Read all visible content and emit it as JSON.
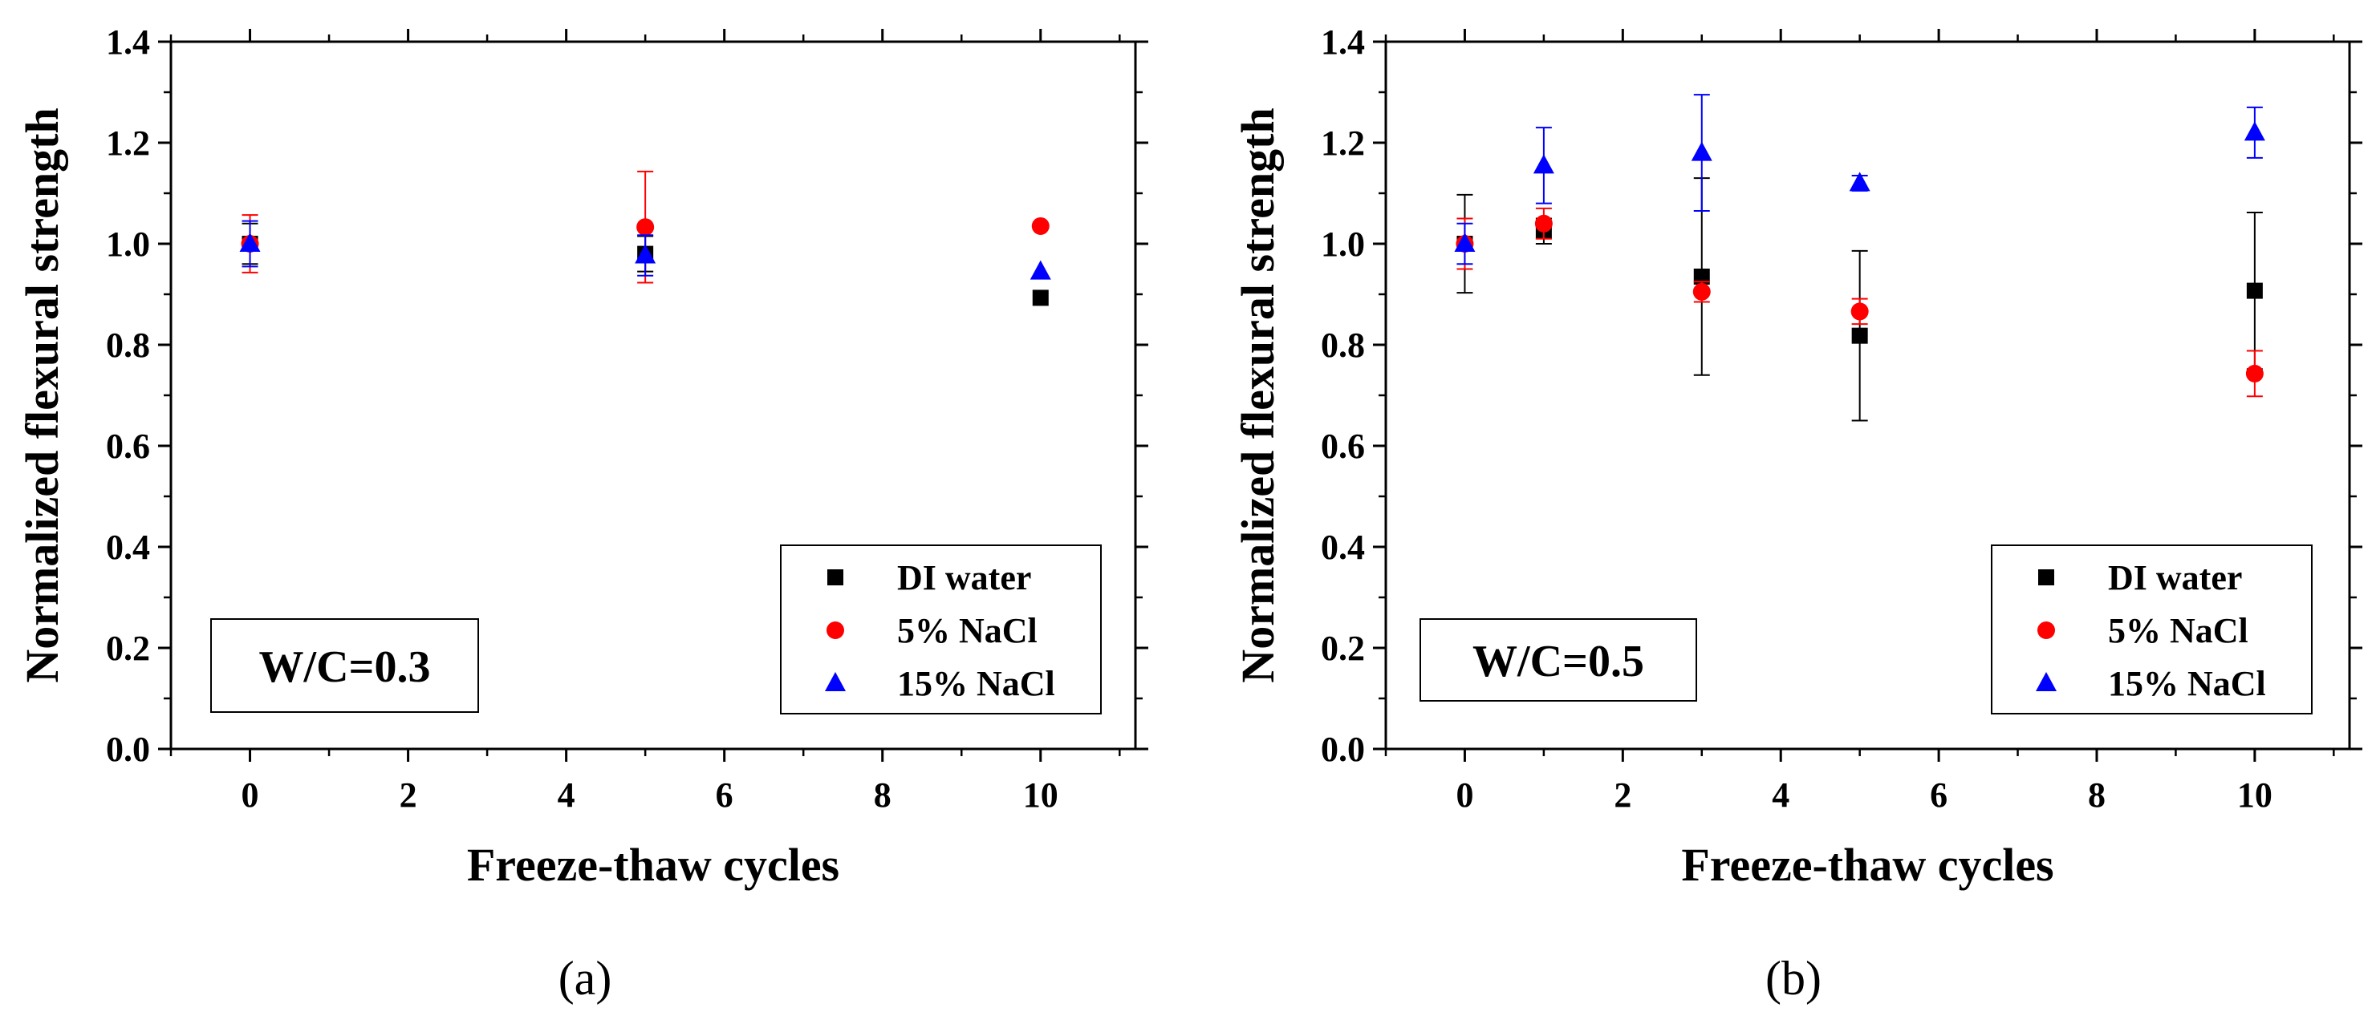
{
  "figure": {
    "panels": [
      "a",
      "b"
    ]
  },
  "chart_data": [
    {
      "type": "scatter",
      "panel_label": "(a)",
      "annotation": "W/C=0.3",
      "xlabel": "Freeze-thaw cycles",
      "ylabel": "Normalized flexural strength",
      "xlim": [
        -1,
        11.2
      ],
      "ylim": [
        0.0,
        1.4
      ],
      "xticks": [
        0,
        2,
        4,
        6,
        8,
        10
      ],
      "yticks": [
        0.0,
        0.2,
        0.4,
        0.6,
        0.8,
        1.0,
        1.2,
        1.4
      ],
      "legend_position": "bottom-right",
      "series": [
        {
          "name": "DI water",
          "marker": "square",
          "color": "#000000",
          "x": [
            0,
            5,
            10
          ],
          "y": [
            1.0,
            0.98,
            0.893
          ],
          "err": [
            0.04,
            0.035,
            0.0
          ]
        },
        {
          "name": "5% NaCl",
          "marker": "circle",
          "color": "#ff0000",
          "x": [
            0,
            5,
            10
          ],
          "y": [
            1.0,
            1.033,
            1.035
          ],
          "err": [
            0.057,
            0.11,
            0.0
          ]
        },
        {
          "name": "15% NaCl",
          "marker": "triangle",
          "color": "#0000ff",
          "x": [
            0,
            5,
            10
          ],
          "y": [
            1.0,
            0.977,
            0.945
          ],
          "err": [
            0.045,
            0.04,
            0.0
          ]
        }
      ]
    },
    {
      "type": "scatter",
      "panel_label": "(b)",
      "annotation": "W/C=0.5",
      "xlabel": "Freeze-thaw cycles",
      "ylabel": "Normalized flexural strength",
      "xlim": [
        -1,
        11.2
      ],
      "ylim": [
        0.0,
        1.4
      ],
      "xticks": [
        0,
        2,
        4,
        6,
        8,
        10
      ],
      "yticks": [
        0.0,
        0.2,
        0.4,
        0.6,
        0.8,
        1.0,
        1.2,
        1.4
      ],
      "legend_position": "bottom-right",
      "series": [
        {
          "name": "DI water",
          "marker": "square",
          "color": "#000000",
          "x": [
            0,
            1,
            3,
            5,
            10
          ],
          "y": [
            1.0,
            1.025,
            0.935,
            0.818,
            0.907
          ],
          "err": [
            0.097,
            0.025,
            0.195,
            0.168,
            0.155
          ]
        },
        {
          "name": "5% NaCl",
          "marker": "circle",
          "color": "#ff0000",
          "x": [
            0,
            1,
            3,
            5,
            10
          ],
          "y": [
            1.0,
            1.04,
            0.905,
            0.866,
            0.743
          ],
          "err": [
            0.05,
            0.03,
            0.02,
            0.025,
            0.045
          ]
        },
        {
          "name": "15% NaCl",
          "marker": "triangle",
          "color": "#0000ff",
          "x": [
            0,
            1,
            3,
            5,
            10
          ],
          "y": [
            1.0,
            1.155,
            1.18,
            1.12,
            1.22
          ],
          "err": [
            0.04,
            0.075,
            0.115,
            0.015,
            0.05
          ]
        }
      ]
    }
  ]
}
